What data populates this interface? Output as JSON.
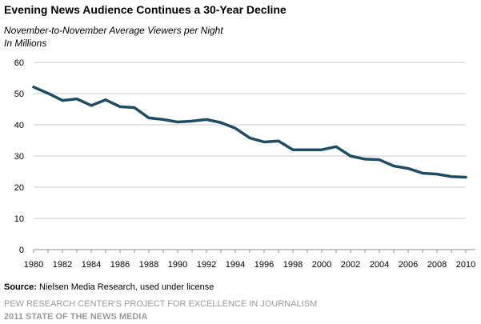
{
  "chart_data": {
    "type": "line",
    "title": "Evening News Audience Continues a 30-Year Decline",
    "subtitle": "November-to-November Average Viewers per Night",
    "unit_note": "In Millions",
    "xlabel": "",
    "ylabel": "",
    "x": [
      1980,
      1981,
      1982,
      1983,
      1984,
      1985,
      1986,
      1987,
      1988,
      1989,
      1990,
      1991,
      1992,
      1993,
      1994,
      1995,
      1996,
      1997,
      1998,
      1999,
      2000,
      2001,
      2002,
      2003,
      2004,
      2005,
      2006,
      2007,
      2008,
      2009,
      2010
    ],
    "series": [
      {
        "name": "",
        "values": [
          52.1,
          50.1,
          47.8,
          48.3,
          46.2,
          48.0,
          45.8,
          45.5,
          42.2,
          41.7,
          40.9,
          41.2,
          41.7,
          40.7,
          38.9,
          35.8,
          34.5,
          34.8,
          32.0,
          32.0,
          32.0,
          33.0,
          30.0,
          29.0,
          28.8,
          26.8,
          26.0,
          24.5,
          24.2,
          23.4,
          23.2
        ]
      }
    ],
    "ylim": [
      0,
      60
    ],
    "xlim": [
      1980,
      2010
    ],
    "y_ticks": [
      "0",
      "10",
      "20",
      "30",
      "40",
      "50",
      "60"
    ],
    "x_ticks": [
      "1980",
      "1982",
      "1984",
      "1986",
      "1988",
      "1990",
      "1992",
      "1994",
      "1996",
      "1998",
      "2000",
      "2002",
      "2004",
      "2006",
      "2008",
      "2010"
    ],
    "line_color": "#1f4e63",
    "grid": "horizontal"
  },
  "footer": {
    "source_label": "Source:",
    "source_text": " Nielsen Media Research, used under license",
    "org_line1": "PEW RESEARCH CENTER'S PROJECT FOR EXCELLENCE IN JOURNALISM",
    "org_line2": "2011 STATE OF THE NEWS MEDIA"
  }
}
